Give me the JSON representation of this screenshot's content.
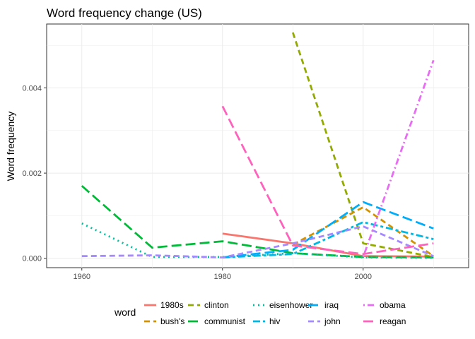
{
  "chart_data": {
    "type": "line",
    "title": "Word frequency change (US)",
    "xlabel": "",
    "ylabel": "Word frequency",
    "xlim": [
      1955,
      2015
    ],
    "ylim": [
      -0.00022,
      0.0055
    ],
    "x_ticks": [
      1960,
      1980,
      2000
    ],
    "x_tick_labels": [
      "1960",
      "1980",
      "2000"
    ],
    "y_ticks": [
      0.0,
      0.002,
      0.004
    ],
    "y_tick_labels": [
      "0.000",
      "0.002",
      "0.004"
    ],
    "grid": true,
    "legend": {
      "title": "word",
      "position": "bottom",
      "columns": 4
    },
    "series": [
      {
        "name": "1980s",
        "color": "#F8766D",
        "dash": "solid",
        "points": [
          [
            1980,
            0.00058
          ],
          [
            1990,
            0.00035
          ],
          [
            2000,
            5e-05
          ],
          [
            2010,
            4e-05
          ]
        ]
      },
      {
        "name": "bush's",
        "color": "#D39200",
        "dash": "dashed",
        "points": [
          [
            1990,
            0.00032
          ],
          [
            2000,
            0.0012
          ],
          [
            2010,
            5e-05
          ]
        ]
      },
      {
        "name": "clinton",
        "color": "#93AA00",
        "dash": "dashed",
        "points": [
          [
            1990,
            0.0053
          ],
          [
            2000,
            0.00035
          ],
          [
            2010,
            3e-05
          ]
        ]
      },
      {
        "name": "communist",
        "color": "#00BA38",
        "dash": "longdash",
        "points": [
          [
            1960,
            0.0017
          ],
          [
            1970,
            0.00025
          ],
          [
            1980,
            0.0004
          ],
          [
            1990,
            0.00012
          ],
          [
            2000,
            3e-05
          ],
          [
            2010,
            2e-05
          ]
        ]
      },
      {
        "name": "eisenhower",
        "color": "#00C19F",
        "dash": "dotted",
        "points": [
          [
            1960,
            0.00082
          ],
          [
            1970,
            3e-05
          ],
          [
            1980,
            3e-05
          ],
          [
            1990,
            0.00012
          ],
          [
            2000,
            2e-05
          ],
          [
            2010,
            1e-05
          ]
        ]
      },
      {
        "name": "hiv",
        "color": "#00B9E3",
        "dash": "twodash",
        "points": [
          [
            1980,
            2e-05
          ],
          [
            1990,
            0.0001
          ],
          [
            2000,
            0.00085
          ],
          [
            2010,
            0.00045
          ]
        ]
      },
      {
        "name": "iraq",
        "color": "#00ADFA",
        "dash": "longdash",
        "points": [
          [
            1980,
            2e-05
          ],
          [
            1990,
            0.0002
          ],
          [
            2000,
            0.00132
          ],
          [
            2010,
            0.0007
          ]
        ]
      },
      {
        "name": "john",
        "color": "#A58AFF",
        "dash": "dashed",
        "points": [
          [
            1960,
            5e-05
          ],
          [
            1970,
            7e-05
          ],
          [
            1980,
            2e-05
          ],
          [
            1990,
            0.00035
          ],
          [
            2000,
            0.00075
          ],
          [
            2010,
            5e-05
          ]
        ]
      },
      {
        "name": "obama",
        "color": "#E76BF3",
        "dash": "dotdash",
        "points": [
          [
            2000,
            3e-05
          ],
          [
            2010,
            0.00465
          ]
        ]
      },
      {
        "name": "reagan",
        "color": "#FF62BC",
        "dash": "longdash",
        "points": [
          [
            1980,
            0.00357
          ],
          [
            1990,
            0.0003
          ],
          [
            2000,
            0.0001
          ],
          [
            2010,
            0.00035
          ]
        ]
      }
    ]
  }
}
